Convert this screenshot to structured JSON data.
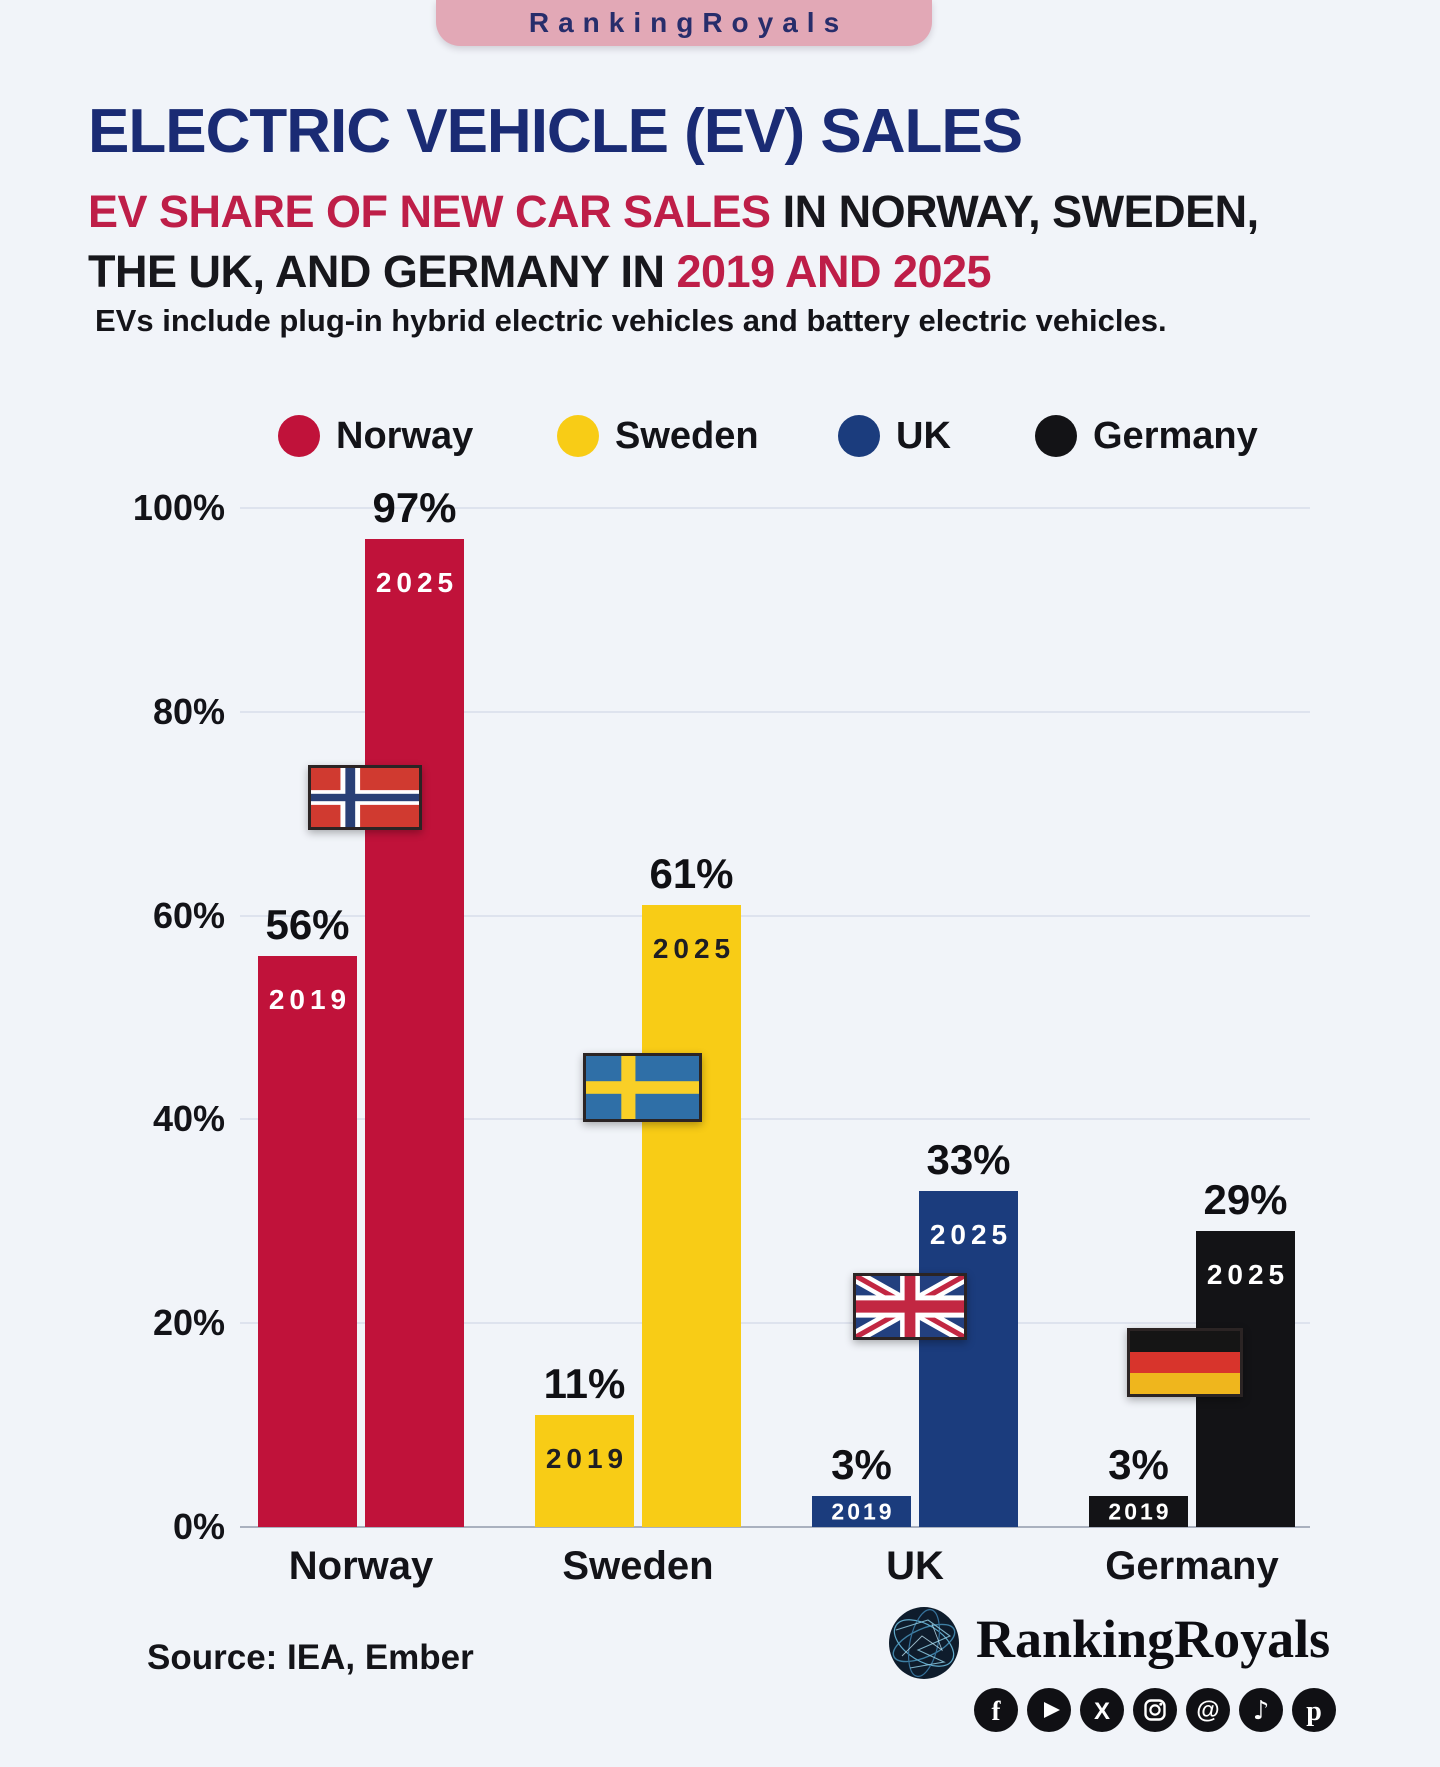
{
  "badge": {
    "label": "RankingRoyals"
  },
  "header": {
    "title": "ELECTRIC VEHICLE (EV) SALES",
    "subtitle_highlight_1": "EV SHARE OF NEW CAR SALES",
    "subtitle_plain_1": " IN NORWAY, SWEDEN,",
    "subtitle_plain_2": "THE UK, AND GERMANY IN ",
    "subtitle_highlight_2": "2019 AND 2025",
    "note": "EVs include plug-in hybrid electric vehicles and battery electric vehicles."
  },
  "colors": {
    "norway": "#C0123A",
    "sweden": "#F8CC16",
    "uk": "#1B3C7D",
    "germany": "#131316",
    "title_navy": "#1A2B74",
    "crimson": "#BE1E48",
    "badge_pink": "#E2A8B6",
    "background": "#F1F4F9"
  },
  "legend": [
    {
      "label": "Norway",
      "color": "#C0123A"
    },
    {
      "label": "Sweden",
      "color": "#F8CC16"
    },
    {
      "label": "UK",
      "color": "#1B3C7D"
    },
    {
      "label": "Germany",
      "color": "#131316"
    }
  ],
  "chart_data": {
    "type": "bar",
    "title": "EV share of new car sales in Norway, Sweden, the UK, and Germany in 2019 and 2025",
    "categories": [
      "Norway",
      "Sweden",
      "UK",
      "Germany"
    ],
    "series": [
      {
        "name": "2019",
        "values": [
          56,
          11,
          3,
          3
        ]
      },
      {
        "name": "2025",
        "values": [
          97,
          61,
          33,
          29
        ]
      }
    ],
    "value_suffix": "%",
    "ylim": [
      0,
      100
    ],
    "yticks": [
      100,
      80,
      60,
      40,
      20,
      0
    ],
    "ytick_suffix": "%",
    "grid": true,
    "legend_position": "top",
    "colors_by_category": {
      "Norway": "#C0123A",
      "Sweden": "#F8CC16",
      "UK": "#1B3C7D",
      "Germany": "#131316"
    }
  },
  "footer": {
    "source": "Source: IEA, Ember",
    "brand": "RankingRoyals",
    "social": [
      "facebook",
      "youtube",
      "x",
      "instagram",
      "threads",
      "tiktok",
      "pinterest"
    ]
  }
}
